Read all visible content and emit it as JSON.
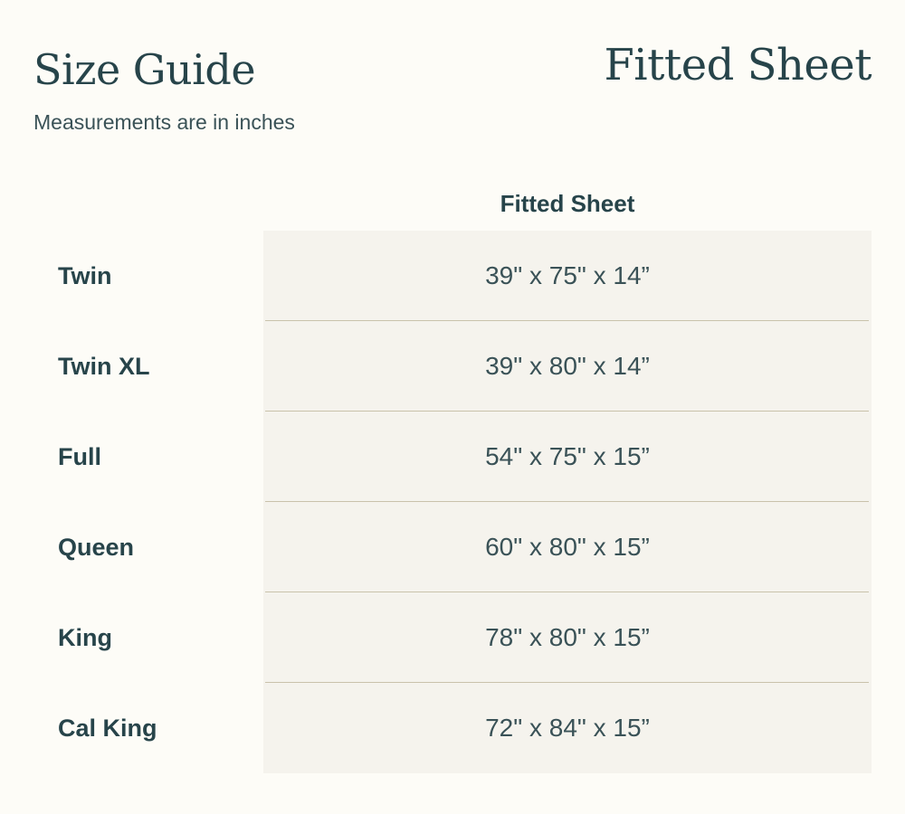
{
  "header": {
    "title": "Size Guide",
    "subtitle": "Measurements are in inches",
    "product": "Fitted Sheet"
  },
  "table": {
    "column_header": "Fitted Sheet",
    "rows": [
      {
        "size": "Twin",
        "dimensions": "39\" x 75\" x 14”"
      },
      {
        "size": "Twin XL",
        "dimensions": "39\" x 80\" x 14”"
      },
      {
        "size": "Full",
        "dimensions": "54\" x 75\" x 15”"
      },
      {
        "size": "Queen",
        "dimensions": "60\" x 80\" x 15”"
      },
      {
        "size": "King",
        "dimensions": "78\" x 80\" x 15”"
      },
      {
        "size": "Cal King",
        "dimensions": "72\" x 84\" x 15”"
      }
    ]
  },
  "colors": {
    "text": "#27444a",
    "background": "#fdfcf7",
    "table_background": "#f5f3ed",
    "divider": "#c9c2ab"
  }
}
